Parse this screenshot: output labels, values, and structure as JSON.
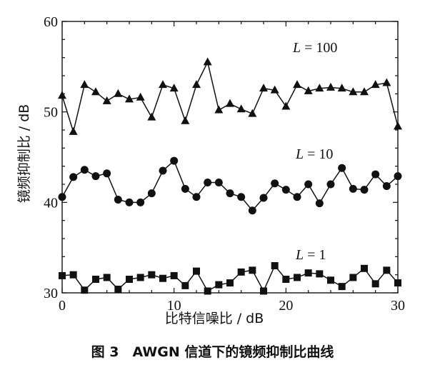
{
  "caption": "图 3　AWGN 信道下的镜频抑制比曲线",
  "chart_data": {
    "type": "line",
    "xlabel": "比特信噪比 / dB",
    "ylabel": "镜频抑制比 / dB",
    "xlim": [
      0,
      30
    ],
    "ylim": [
      30,
      60
    ],
    "xticks": [
      0,
      10,
      20,
      30
    ],
    "yticks": [
      30,
      40,
      50,
      60
    ],
    "x": [
      0,
      1,
      2,
      3,
      4,
      5,
      6,
      7,
      8,
      9,
      10,
      11,
      12,
      13,
      14,
      15,
      16,
      17,
      18,
      19,
      20,
      21,
      22,
      23,
      24,
      25,
      26,
      27,
      28,
      29,
      30
    ],
    "series": [
      {
        "name": "L = 100",
        "marker": "triangle",
        "values": [
          51.8,
          47.8,
          53.0,
          52.2,
          51.2,
          52.0,
          51.4,
          51.6,
          49.4,
          53.0,
          52.6,
          49.0,
          53.0,
          55.5,
          50.2,
          50.9,
          50.3,
          49.8,
          52.6,
          52.4,
          50.6,
          53.0,
          52.3,
          52.6,
          52.7,
          52.6,
          52.2,
          52.2,
          53.0,
          53.2,
          48.4
        ]
      },
      {
        "name": "L = 10",
        "marker": "circle",
        "values": [
          40.6,
          42.8,
          43.6,
          42.9,
          43.2,
          40.3,
          40.0,
          40.0,
          41.0,
          43.5,
          44.6,
          41.5,
          40.6,
          42.2,
          42.2,
          41.0,
          40.6,
          39.1,
          40.5,
          42.1,
          41.4,
          40.6,
          42.0,
          39.9,
          42.0,
          43.8,
          41.5,
          41.4,
          43.1,
          41.8,
          42.9
        ]
      },
      {
        "name": "L = 1",
        "marker": "square",
        "values": [
          31.9,
          32.0,
          30.3,
          31.5,
          31.7,
          30.4,
          31.5,
          31.7,
          32.0,
          31.6,
          31.9,
          30.8,
          32.4,
          30.2,
          30.9,
          31.1,
          32.3,
          32.5,
          30.2,
          33.0,
          31.5,
          31.7,
          32.2,
          32.1,
          31.4,
          30.7,
          31.7,
          32.7,
          31.0,
          32.5,
          31.1
        ]
      }
    ],
    "grid": false,
    "series_labels": [
      {
        "var": "L",
        "eq": " = 100"
      },
      {
        "var": "L",
        "eq": " = 10"
      },
      {
        "var": "L",
        "eq": " = 1"
      }
    ]
  }
}
